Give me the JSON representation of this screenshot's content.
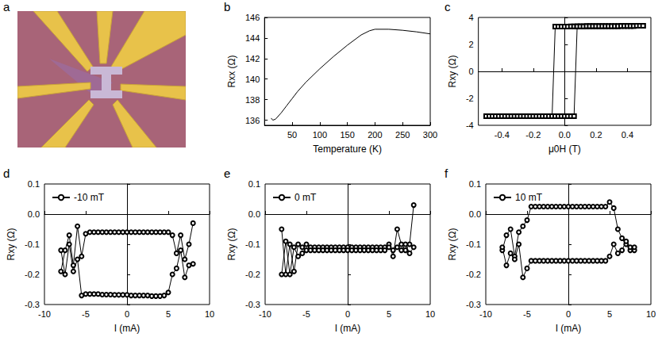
{
  "chart_data": [
    {
      "panel": "a",
      "type": "image"
    },
    {
      "panel": "b",
      "type": "line",
      "x_label": "Temperature (K)",
      "y_label": "Rxx (Ω)",
      "color": "#000000",
      "marker": "none",
      "line_style": "solid",
      "grid": false,
      "xlim": [
        0,
        300
      ],
      "xticks": [
        50,
        100,
        150,
        200,
        250,
        300
      ],
      "ylim": [
        135.5,
        146
      ],
      "yticks": [
        136,
        138,
        140,
        142,
        144,
        146
      ],
      "x": [
        12,
        15,
        20,
        30,
        40,
        50,
        60,
        75,
        100,
        125,
        150,
        175,
        190,
        200,
        225,
        250,
        275,
        300
      ],
      "values": [
        136.2,
        136.0,
        136.1,
        136.7,
        137.4,
        138.1,
        138.8,
        139.7,
        141.0,
        142.2,
        143.3,
        144.3,
        144.7,
        144.85,
        144.85,
        144.75,
        144.6,
        144.4
      ]
    },
    {
      "panel": "c",
      "type": "line",
      "x_label": "μ0H (T)",
      "y_label": "Rxy (Ω)",
      "color": "#000000",
      "marker": "square",
      "line_style": "solid",
      "grid": false,
      "xlim": [
        -0.55,
        0.55
      ],
      "xticks": [
        -0.4,
        -0.2,
        {
          "value": 0,
          "label": "0.0"
        },
        0.2,
        0.4
      ],
      "ylim": [
        -4,
        4
      ],
      "yticks": [
        -4,
        -2,
        0,
        2,
        4
      ],
      "x": [
        -0.5,
        -0.48,
        -0.46,
        -0.44,
        -0.42,
        -0.4,
        -0.38,
        -0.36,
        -0.34,
        -0.32,
        -0.3,
        -0.28,
        -0.26,
        -0.24,
        -0.22,
        -0.2,
        -0.18,
        -0.16,
        -0.14,
        -0.12,
        -0.1,
        -0.08,
        -0.06,
        -0.04,
        -0.02,
        0,
        0.02,
        0.04,
        0.06,
        0.08,
        0.1,
        0.12,
        0.14,
        0.16,
        0.18,
        0.2,
        0.22,
        0.24,
        0.26,
        0.28,
        0.3,
        0.32,
        0.34,
        0.36,
        0.38,
        0.4,
        0.42,
        0.44,
        0.46,
        0.48,
        0.5
      ],
      "series": [
        {
          "values": [
            -3.32,
            -3.32,
            -3.32,
            -3.32,
            -3.32,
            -3.32,
            -3.32,
            -3.32,
            -3.32,
            -3.32,
            -3.32,
            -3.32,
            -3.32,
            -3.32,
            -3.32,
            -3.32,
            -3.32,
            -3.32,
            -3.32,
            -3.32,
            -3.32,
            -3.32,
            3.33,
            3.33,
            3.33,
            3.33,
            3.33,
            3.34,
            3.34,
            3.34,
            3.34,
            3.34,
            3.35,
            3.35,
            3.35,
            3.35,
            3.35,
            3.35,
            3.36,
            3.36,
            3.36,
            3.36,
            3.36,
            3.37,
            3.37,
            3.37,
            3.37,
            3.37,
            3.38,
            3.38,
            3.38
          ]
        },
        {
          "values": [
            -3.32,
            -3.32,
            -3.32,
            -3.32,
            -3.32,
            -3.32,
            -3.32,
            -3.32,
            -3.32,
            -3.32,
            -3.32,
            -3.32,
            -3.32,
            -3.32,
            -3.32,
            -3.32,
            -3.32,
            -3.32,
            -3.32,
            -3.32,
            -3.32,
            -3.32,
            -3.32,
            -3.32,
            -3.32,
            -3.32,
            -3.32,
            -3.32,
            -3.32,
            3.34,
            3.34,
            3.34,
            3.35,
            3.35,
            3.35,
            3.35,
            3.35,
            3.35,
            3.36,
            3.36,
            3.36,
            3.36,
            3.36,
            3.37,
            3.37,
            3.37,
            3.37,
            3.37,
            3.38,
            3.38,
            3.38
          ]
        }
      ]
    },
    {
      "panel": "d",
      "type": "line",
      "x_label": "I (mA)",
      "y_label": "Rxy (Ω)",
      "color": "#000000",
      "marker": "circle",
      "line_style": "solid",
      "grid": false,
      "legend": "upper left",
      "xlim": [
        -10,
        10
      ],
      "xticks": [
        -10,
        -5,
        0,
        5,
        10
      ],
      "ylim": [
        -0.3,
        0.1
      ],
      "yticks": [
        -0.3,
        -0.2,
        -0.1,
        {
          "value": 0,
          "label": "0.0"
        },
        0.1
      ],
      "x": [
        -8,
        -7.5,
        -7,
        -6.5,
        -6,
        -5.5,
        -5,
        -4.5,
        -4,
        -3.5,
        -3,
        -2.5,
        -2,
        -1.5,
        -1,
        -0.5,
        0,
        0.5,
        1,
        1.5,
        2,
        2.5,
        3,
        3.5,
        4,
        4.5,
        5,
        5.5,
        6,
        6.5,
        7,
        7.5,
        8
      ],
      "series": [
        {
          "name": "-10 mT",
          "values": [
            -0.19,
            -0.12,
            -0.07,
            -0.17,
            -0.04,
            -0.14,
            -0.065,
            -0.06,
            -0.06,
            -0.06,
            -0.06,
            -0.06,
            -0.06,
            -0.06,
            -0.06,
            -0.06,
            -0.06,
            -0.06,
            -0.06,
            -0.06,
            -0.06,
            -0.06,
            -0.06,
            -0.06,
            -0.06,
            -0.06,
            -0.06,
            -0.07,
            -0.13,
            -0.07,
            -0.15,
            -0.1,
            -0.03
          ]
        },
        {
          "values": [
            -0.12,
            -0.2,
            -0.1,
            -0.19,
            -0.15,
            -0.27,
            -0.265,
            -0.265,
            -0.265,
            -0.265,
            -0.267,
            -0.267,
            -0.267,
            -0.268,
            -0.268,
            -0.268,
            -0.268,
            -0.27,
            -0.27,
            -0.27,
            -0.27,
            -0.27,
            -0.272,
            -0.272,
            -0.272,
            -0.27,
            -0.26,
            -0.2,
            -0.18,
            -0.12,
            -0.21,
            -0.17,
            -0.165
          ]
        }
      ]
    },
    {
      "panel": "e",
      "type": "line",
      "x_label": "I (mA)",
      "y_label": "Rxy (Ω)",
      "color": "#000000",
      "marker": "circle",
      "line_style": "solid",
      "grid": false,
      "legend": "upper left",
      "xlim": [
        -10,
        10
      ],
      "xticks": [
        -10,
        -5,
        0,
        5,
        10
      ],
      "ylim": [
        -0.3,
        0.1
      ],
      "yticks": [
        -0.3,
        -0.2,
        -0.1,
        {
          "value": 0,
          "label": "0.0"
        },
        0.1
      ],
      "x": [
        -8,
        -7.5,
        -7,
        -6.5,
        -6,
        -5.5,
        -5,
        -4.5,
        -4,
        -3.5,
        -3,
        -2.5,
        -2,
        -1.5,
        -1,
        -0.5,
        0,
        0.5,
        1,
        1.5,
        2,
        2.5,
        3,
        3.5,
        4,
        4.5,
        5,
        5.5,
        6,
        6.5,
        7,
        7.5,
        8
      ],
      "series": [
        {
          "name": "0 mT",
          "values": [
            -0.05,
            -0.2,
            -0.1,
            -0.19,
            -0.1,
            -0.11,
            -0.1,
            -0.11,
            -0.11,
            -0.11,
            -0.11,
            -0.11,
            -0.11,
            -0.11,
            -0.11,
            -0.11,
            -0.11,
            -0.11,
            -0.11,
            -0.11,
            -0.11,
            -0.11,
            -0.11,
            -0.11,
            -0.11,
            -0.11,
            -0.1,
            -0.14,
            -0.05,
            -0.1,
            -0.12,
            -0.1,
            0.03
          ]
        },
        {
          "values": [
            -0.2,
            -0.09,
            -0.2,
            -0.11,
            -0.14,
            -0.13,
            -0.12,
            -0.12,
            -0.12,
            -0.12,
            -0.12,
            -0.12,
            -0.12,
            -0.12,
            -0.12,
            -0.12,
            -0.12,
            -0.12,
            -0.12,
            -0.12,
            -0.12,
            -0.12,
            -0.12,
            -0.12,
            -0.12,
            -0.12,
            -0.11,
            -0.12,
            -0.11,
            -0.12,
            -0.1,
            -0.13,
            -0.11
          ]
        }
      ]
    },
    {
      "panel": "f",
      "type": "line",
      "x_label": "I (mA)",
      "y_label": "Rxy (Ω)",
      "color": "#000000",
      "marker": "circle",
      "line_style": "solid",
      "grid": false,
      "legend": "upper left",
      "xlim": [
        -10,
        10
      ],
      "xticks": [
        -10,
        -5,
        0,
        5,
        10
      ],
      "ylim": [
        -0.3,
        0.1
      ],
      "yticks": [
        -0.3,
        -0.2,
        -0.1,
        {
          "value": 0,
          "label": "0.0"
        },
        0.1
      ],
      "x": [
        -8,
        -7.5,
        -7,
        -6.5,
        -6,
        -5.5,
        -5,
        -4.5,
        -4,
        -3.5,
        -3,
        -2.5,
        -2,
        -1.5,
        -1,
        -0.5,
        0,
        0.5,
        1,
        1.5,
        2,
        2.5,
        3,
        3.5,
        4,
        4.5,
        5,
        5.5,
        6,
        6.5,
        7,
        7.5,
        8
      ],
      "series": [
        {
          "name": "10 mT",
          "values": [
            -0.12,
            -0.07,
            -0.05,
            -0.14,
            -0.06,
            -0.04,
            -0.02,
            0.025,
            0.025,
            0.025,
            0.025,
            0.025,
            0.025,
            0.025,
            0.025,
            0.025,
            0.025,
            0.025,
            0.025,
            0.025,
            0.025,
            0.025,
            0.025,
            0.025,
            0.025,
            0.025,
            0.04,
            0.02,
            -0.05,
            -0.08,
            -0.1,
            -0.12,
            -0.12
          ]
        },
        {
          "values": [
            -0.11,
            -0.17,
            -0.13,
            -0.15,
            -0.1,
            -0.21,
            -0.18,
            -0.155,
            -0.155,
            -0.155,
            -0.155,
            -0.155,
            -0.155,
            -0.155,
            -0.155,
            -0.155,
            -0.155,
            -0.155,
            -0.155,
            -0.155,
            -0.155,
            -0.155,
            -0.155,
            -0.155,
            -0.155,
            -0.155,
            -0.14,
            -0.1,
            -0.13,
            -0.12,
            -0.09,
            -0.11,
            -0.11
          ]
        }
      ]
    }
  ]
}
